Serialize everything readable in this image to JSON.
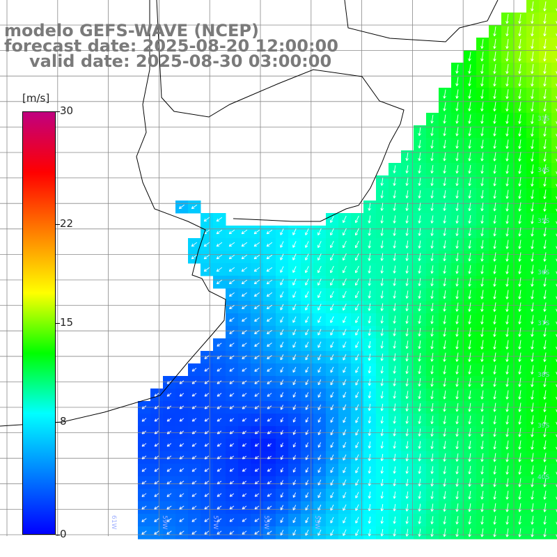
{
  "title": {
    "line1": "modelo GEFS-WAVE (NCEP)",
    "line2": "forecast date: 2025-08-20 12:00:00",
    "line3": "valid date: 2025-08-30 03:00:00"
  },
  "colorbar": {
    "units": "[m/s]",
    "range": [
      0,
      30
    ],
    "ticks": [
      {
        "value": 30,
        "label": "30"
      },
      {
        "value": 22,
        "label": "22"
      },
      {
        "value": 15,
        "label": "15"
      },
      {
        "value": 8,
        "label": "8"
      },
      {
        "value": 0,
        "label": "0"
      }
    ],
    "colors": [
      "#0000ff",
      "#0080ff",
      "#00ffff",
      "#00ff00",
      "#ffff00",
      "#ff8000",
      "#ff0000",
      "#c00080"
    ]
  },
  "map": {
    "latitude_labels": [
      "33S",
      "34S",
      "35S",
      "36S",
      "37S",
      "38S",
      "39S",
      "40S"
    ],
    "longitude_labels": [
      "61W",
      "59W",
      "57W",
      "55W",
      "53W"
    ],
    "background_land": "#ffffff",
    "coastline_color": "#000000",
    "grid_color": "#888888",
    "arrow_color": "#ffffff"
  }
}
